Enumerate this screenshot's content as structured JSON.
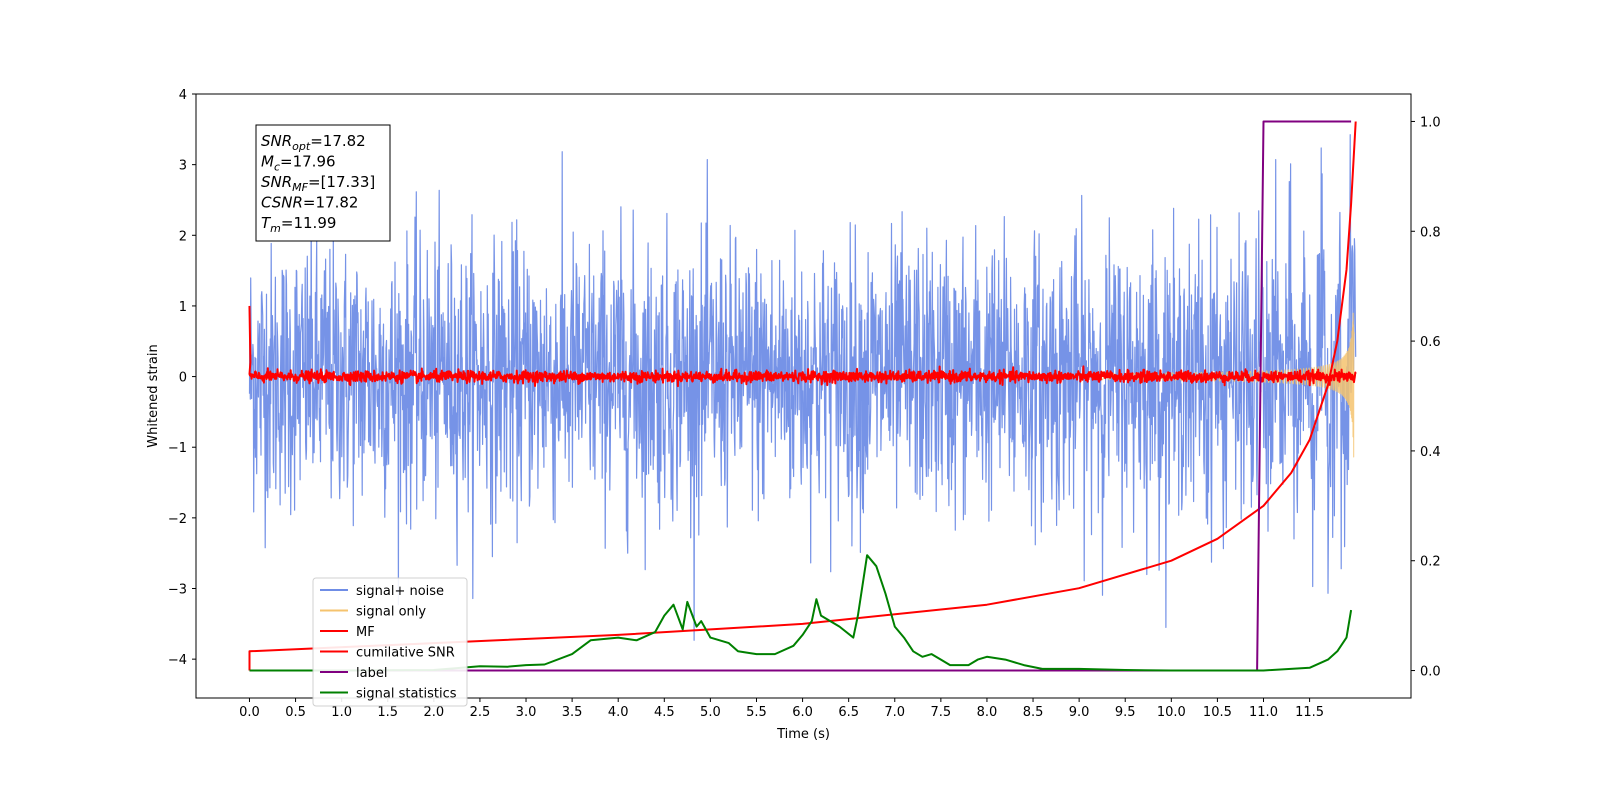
{
  "chart_data": {
    "type": "line",
    "xlabel": "Time (s)",
    "ylabel": "Whitened strain",
    "xlim": [
      -0.58,
      12.6
    ],
    "ylim": [
      -4.55,
      4.0
    ],
    "y2lim": [
      -0.05,
      1.05
    ],
    "x_ticks": [
      "0.0",
      "0.5",
      "1.0",
      "1.5",
      "2.0",
      "2.5",
      "3.0",
      "3.5",
      "4.0",
      "4.5",
      "5.0",
      "5.5",
      "6.0",
      "6.5",
      "7.0",
      "7.5",
      "8.0",
      "8.5",
      "9.0",
      "9.5",
      "10.0",
      "10.5",
      "11.0",
      "11.5"
    ],
    "y_ticks": [
      "4",
      "3",
      "2",
      "1",
      "0",
      "−1",
      "−2",
      "−3",
      "−4"
    ],
    "y2_ticks": [
      "1.0",
      "0.8",
      "0.6",
      "0.4",
      "0.2",
      "0.0"
    ],
    "annotation": {
      "lines": [
        {
          "sym": "SNR",
          "sub": "opt",
          "value": "=17.82"
        },
        {
          "sym": "M",
          "sub": "c",
          "value": "=17.96"
        },
        {
          "sym": "SNR",
          "sub": "MF",
          "value": "=[17.33]"
        },
        {
          "sym": "CSNR",
          "sub": "",
          "value": "=17.82"
        },
        {
          "sym": "T",
          "sub": "m",
          "value": "=11.99"
        }
      ]
    },
    "legend_position": "lower-left",
    "series": [
      {
        "name": "signal+ noise",
        "color": "#6f8de6",
        "axis": "left",
        "kind": "noise",
        "sigma": 0.95
      },
      {
        "name": "signal only",
        "color": "#f5c36e",
        "axis": "left",
        "kind": "chirp",
        "t_merge": 11.99
      },
      {
        "name": "MF",
        "color": "#ff0000",
        "axis": "left",
        "kind": "noise",
        "sigma": 0.04
      },
      {
        "name": "cumilative SNR",
        "color": "#ff0000",
        "axis": "right",
        "points": [
          [
            0.0,
            0.0
          ],
          [
            0.0,
            0.035
          ],
          [
            2.0,
            0.05
          ],
          [
            4.0,
            0.065
          ],
          [
            6.0,
            0.085
          ],
          [
            8.0,
            0.12
          ],
          [
            9.0,
            0.15
          ],
          [
            10.0,
            0.2
          ],
          [
            10.5,
            0.24
          ],
          [
            11.0,
            0.3
          ],
          [
            11.3,
            0.36
          ],
          [
            11.5,
            0.42
          ],
          [
            11.7,
            0.52
          ],
          [
            11.8,
            0.6
          ],
          [
            11.9,
            0.73
          ],
          [
            11.95,
            0.85
          ],
          [
            12.0,
            1.0
          ]
        ]
      },
      {
        "name": "label",
        "color": "#800080",
        "axis": "right",
        "points": [
          [
            0.0,
            0.0
          ],
          [
            10.93,
            0.0
          ],
          [
            11.0,
            1.0
          ],
          [
            11.95,
            1.0
          ]
        ]
      },
      {
        "name": "signal statistics",
        "color": "#008000",
        "axis": "right",
        "points": [
          [
            0.0,
            0.0
          ],
          [
            1.0,
            0.0
          ],
          [
            2.0,
            0.001
          ],
          [
            2.5,
            0.008
          ],
          [
            2.8,
            0.007
          ],
          [
            3.0,
            0.01
          ],
          [
            3.2,
            0.011
          ],
          [
            3.5,
            0.03
          ],
          [
            3.7,
            0.055
          ],
          [
            4.0,
            0.06
          ],
          [
            4.2,
            0.055
          ],
          [
            4.4,
            0.07
          ],
          [
            4.5,
            0.1
          ],
          [
            4.6,
            0.12
          ],
          [
            4.7,
            0.075
          ],
          [
            4.75,
            0.125
          ],
          [
            4.85,
            0.08
          ],
          [
            4.9,
            0.09
          ],
          [
            5.0,
            0.06
          ],
          [
            5.2,
            0.05
          ],
          [
            5.3,
            0.035
          ],
          [
            5.5,
            0.03
          ],
          [
            5.7,
            0.03
          ],
          [
            5.9,
            0.045
          ],
          [
            6.0,
            0.065
          ],
          [
            6.1,
            0.09
          ],
          [
            6.15,
            0.13
          ],
          [
            6.2,
            0.1
          ],
          [
            6.4,
            0.08
          ],
          [
            6.55,
            0.06
          ],
          [
            6.6,
            0.1
          ],
          [
            6.7,
            0.21
          ],
          [
            6.8,
            0.19
          ],
          [
            6.9,
            0.14
          ],
          [
            7.0,
            0.08
          ],
          [
            7.1,
            0.06
          ],
          [
            7.2,
            0.035
          ],
          [
            7.3,
            0.025
          ],
          [
            7.4,
            0.03
          ],
          [
            7.5,
            0.02
          ],
          [
            7.6,
            0.01
          ],
          [
            7.8,
            0.01
          ],
          [
            7.9,
            0.02
          ],
          [
            8.0,
            0.025
          ],
          [
            8.2,
            0.02
          ],
          [
            8.4,
            0.01
          ],
          [
            8.6,
            0.003
          ],
          [
            9.0,
            0.003
          ],
          [
            9.5,
            0.001
          ],
          [
            10.0,
            0.0
          ],
          [
            11.0,
            0.0
          ],
          [
            11.5,
            0.005
          ],
          [
            11.7,
            0.02
          ],
          [
            11.8,
            0.035
          ],
          [
            11.9,
            0.06
          ],
          [
            11.95,
            0.11
          ]
        ]
      }
    ]
  }
}
